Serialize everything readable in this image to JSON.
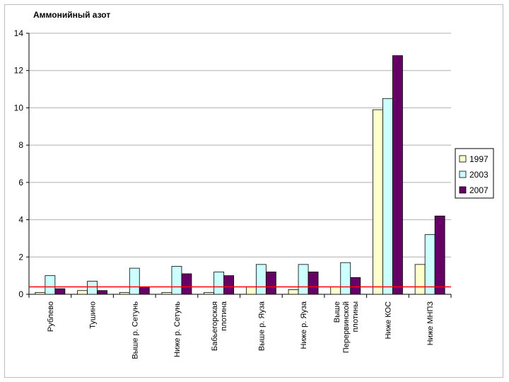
{
  "chart_data": {
    "type": "bar",
    "title": "Аммонийный азот",
    "xlabel": "",
    "ylabel": "",
    "ylim": [
      0,
      14
    ],
    "yticks": [
      0,
      2,
      4,
      6,
      8,
      10,
      12,
      14
    ],
    "grid": true,
    "legend_position": "right",
    "categories": [
      [
        "Рублево"
      ],
      [
        "Тушино"
      ],
      [
        "Выше р. Сетунь"
      ],
      [
        "Ниже р. Сетунь"
      ],
      [
        "Бабьегорская",
        "плотина"
      ],
      [
        "Выше р. Яуза"
      ],
      [
        "Ниже р. Яуза"
      ],
      [
        "Выше",
        "Перервинской",
        "плотины"
      ],
      [
        "Ниже КОС"
      ],
      [
        "Ниже МНПЗ"
      ]
    ],
    "series": [
      {
        "name": "1997",
        "color": "#ffffcc",
        "values": [
          0.1,
          0.2,
          0.1,
          0.1,
          0.1,
          0.4,
          0.25,
          0.4,
          9.9,
          1.6
        ]
      },
      {
        "name": "2003",
        "color": "#ccffff",
        "values": [
          1.0,
          0.7,
          1.4,
          1.5,
          1.2,
          1.6,
          1.6,
          1.7,
          10.5,
          3.2
        ]
      },
      {
        "name": "2007",
        "color": "#660066",
        "values": [
          0.3,
          0.2,
          0.4,
          1.1,
          1.0,
          1.2,
          1.2,
          0.9,
          12.8,
          4.2
        ]
      }
    ],
    "reference_line": {
      "value": 0.4,
      "color": "#ff0000"
    }
  }
}
